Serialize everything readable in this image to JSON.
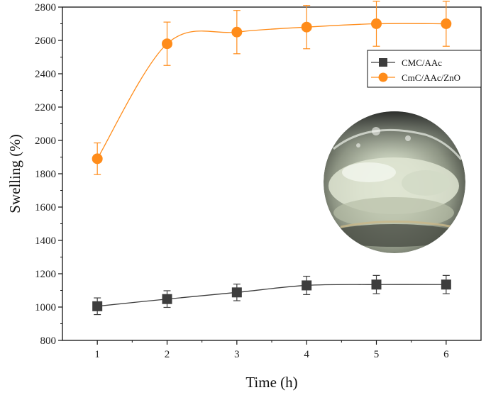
{
  "chart_data": {
    "type": "line",
    "title": "",
    "xlabel": "Time (h)",
    "ylabel": "Swelling (%)",
    "x": [
      1,
      2,
      3,
      4,
      5,
      6
    ],
    "xlim": [
      0.5,
      6.5
    ],
    "ylim": [
      800,
      2800
    ],
    "xticks": [
      1,
      2,
      3,
      4,
      5,
      6
    ],
    "yticks": [
      800,
      1000,
      1200,
      1400,
      1600,
      1800,
      2000,
      2200,
      2400,
      2600,
      2800
    ],
    "grid": false,
    "legend_position": "top-right",
    "series": [
      {
        "name": "CMC/AAc",
        "color": "#3d3d3d",
        "marker": "square",
        "values": [
          1005,
          1048,
          1088,
          1130,
          1135,
          1135
        ],
        "errors": [
          50,
          50,
          50,
          55,
          55,
          55
        ]
      },
      {
        "name": "CmC/AAc/ZnO",
        "color": "#ff8c1a",
        "marker": "circle",
        "values": [
          1890,
          2580,
          2650,
          2680,
          2700,
          2700
        ],
        "errors": [
          95,
          130,
          130,
          130,
          135,
          135
        ]
      }
    ],
    "inset_photo": {
      "description_icon": "hydrogel-photo-inset"
    }
  }
}
